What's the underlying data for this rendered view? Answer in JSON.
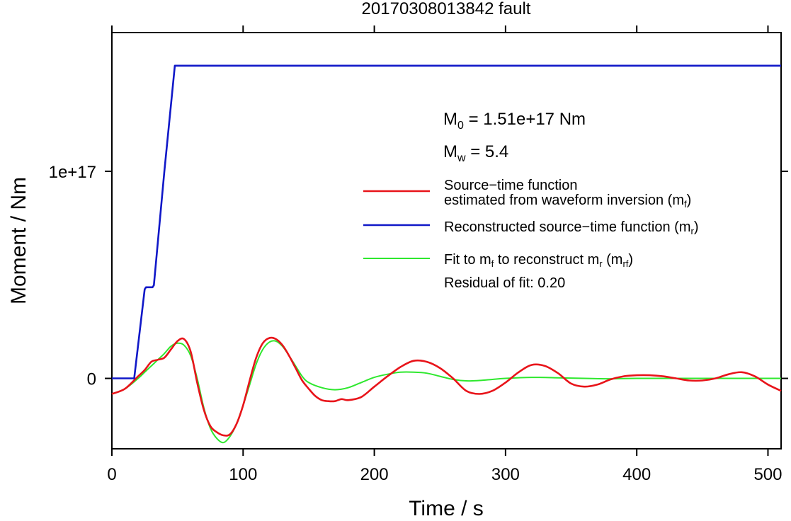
{
  "chart_data": {
    "type": "line",
    "title": "20170308013842 fault",
    "xlabel": "Time / s",
    "ylabel": "Moment / Nm",
    "xlim": [
      0,
      510
    ],
    "ylim": [
      -3.4e+16,
      1.67e+17
    ],
    "x_ticks": [
      0,
      100,
      200,
      300,
      400,
      500
    ],
    "x_tick_labels": [
      "0",
      "100",
      "200",
      "300",
      "400",
      "500"
    ],
    "y_ticks": [
      0,
      1e+17
    ],
    "y_tick_labels": [
      "0",
      "1e+17"
    ],
    "grid": false,
    "legend_position": "right",
    "annotations": {
      "m0_sym": "M",
      "m0_sub": "0",
      "m0_rest": " = 1.51e+17 Nm",
      "mw_sym": "M",
      "mw_sub": "w",
      "mw_rest": " = 5.4",
      "residual": "Residual of fit: 0.20"
    },
    "series": [
      {
        "name": "Source−time function estimated from waveform inversion (m_f)",
        "legend_line1": "Source−time function",
        "legend_line2_pre": "estimated from waveform inversion (m",
        "legend_line2_sub": "f",
        "legend_line2_post": ")",
        "color": "#e8141a",
        "x": [
          0,
          10,
          20,
          25,
          30,
          35,
          40,
          45,
          50,
          55,
          60,
          65,
          70,
          75,
          80,
          85,
          90,
          95,
          100,
          105,
          110,
          115,
          120,
          125,
          130,
          135,
          140,
          145,
          150,
          155,
          160,
          165,
          170,
          175,
          180,
          190,
          200,
          210,
          220,
          230,
          240,
          250,
          260,
          270,
          280,
          290,
          300,
          310,
          320,
          330,
          340,
          350,
          360,
          370,
          380,
          390,
          400,
          410,
          420,
          430,
          440,
          450,
          460,
          470,
          480,
          490,
          500,
          510
        ],
        "y": [
          -7500000000000000.0,
          -5000000000000000.0,
          1000000000000000.0,
          4000000000000000.0,
          8000000000000000.0,
          9000000000000000.0,
          1e+16,
          1.4e+16,
          1.8e+16,
          1.9e+16,
          1.3e+16,
          -2000000000000000.0,
          -1.5e+16,
          -2.3e+16,
          -2.6e+16,
          -2.75e+16,
          -2.7e+16,
          -2.2e+16,
          -1.3e+16,
          -1000000000000000.0,
          1e+16,
          1.7e+16,
          1.95e+16,
          1.9e+16,
          1.6e+16,
          1.1e+16,
          5000000000000000.0,
          -1000000000000000.0,
          -5000000000000000.0,
          -8500000000000000.0,
          -1.05e+16,
          -1.1e+16,
          -1.1e+16,
          -1e+16,
          -1.05e+16,
          -9000000000000000.0,
          -4000000000000000.0,
          1000000000000000.0,
          5500000000000000.0,
          8500000000000000.0,
          8000000000000000.0,
          5000000000000000.0,
          0.0,
          -6000000000000000.0,
          -7500000000000000.0,
          -6000000000000000.0,
          -2000000000000000.0,
          3000000000000000.0,
          6500000000000000.0,
          6000000000000000.0,
          2500000000000000.0,
          -2500000000000000.0,
          -4000000000000000.0,
          -3000000000000000.0,
          -500000000000000.0,
          1000000000000000.0,
          1500000000000000.0,
          1500000000000000.0,
          1000000000000000.0,
          0.0,
          -1000000000000000.0,
          -1000000000000000.0,
          0.0,
          2000000000000000.0,
          3000000000000000.0,
          1000000000000000.0,
          -3000000000000000.0,
          -6000000000000000.0
        ]
      },
      {
        "name": "Reconstructed source−time function (m_r)",
        "legend_pre": "Reconstructed source−time function (m",
        "legend_sub": "r",
        "legend_post": ")",
        "color": "#1018c8",
        "x": [
          0,
          17,
          25,
          26,
          31,
          32,
          40,
          48,
          510
        ],
        "y": [
          0,
          0,
          4.3e+16,
          4.4e+16,
          4.4e+16,
          4.5e+16,
          1e+17,
          1.51e+17,
          1.51e+17
        ]
      },
      {
        "name": "Fit to m_f to reconstruct m_r (m_rf)",
        "legend_pre": "Fit to m",
        "legend_sub1": "f",
        "legend_mid": " to reconstruct m",
        "legend_sub2": "r",
        "legend_mid2": " (m",
        "legend_sub3": "rf",
        "legend_post": ")",
        "color": "#2ee82e",
        "x": [
          0,
          10,
          20,
          25,
          30,
          35,
          40,
          45,
          50,
          55,
          60,
          65,
          70,
          75,
          80,
          85,
          90,
          95,
          100,
          105,
          110,
          115,
          120,
          125,
          130,
          135,
          140,
          145,
          150,
          160,
          170,
          180,
          190,
          200,
          210,
          220,
          230,
          240,
          250,
          260,
          270,
          280,
          290,
          300,
          320,
          340,
          360,
          380,
          400,
          450,
          510
        ],
        "y": [
          -7500000000000000.0,
          -5000000000000000.0,
          0.0,
          3000000000000000.0,
          6000000000000000.0,
          9000000000000000.0,
          1.2e+16,
          1.55e+16,
          1.7e+16,
          1.6e+16,
          1.1e+16,
          0.0,
          -1.4e+16,
          -2.4e+16,
          -2.9e+16,
          -3.1e+16,
          -2.8e+16,
          -2.2e+16,
          -1.3e+16,
          -3000000000000000.0,
          7000000000000000.0,
          1.4e+16,
          1.75e+16,
          1.8e+16,
          1.55e+16,
          1.1e+16,
          6000000000000000.0,
          1000000000000000.0,
          -2000000000000000.0,
          -4500000000000000.0,
          -5500000000000000.0,
          -4500000000000000.0,
          -2000000000000000.0,
          500000000000000.0,
          2000000000000000.0,
          3000000000000000.0,
          3000000000000000.0,
          2500000000000000.0,
          1000000000000000.0,
          -500000000000000.0,
          -1200000000000000.0,
          -1000000000000000.0,
          -500000000000000.0,
          0.0,
          500000000000000.0,
          300000000000000.0,
          0.0,
          -200000000000000.0,
          0.0,
          0.0,
          0.0
        ]
      }
    ]
  }
}
